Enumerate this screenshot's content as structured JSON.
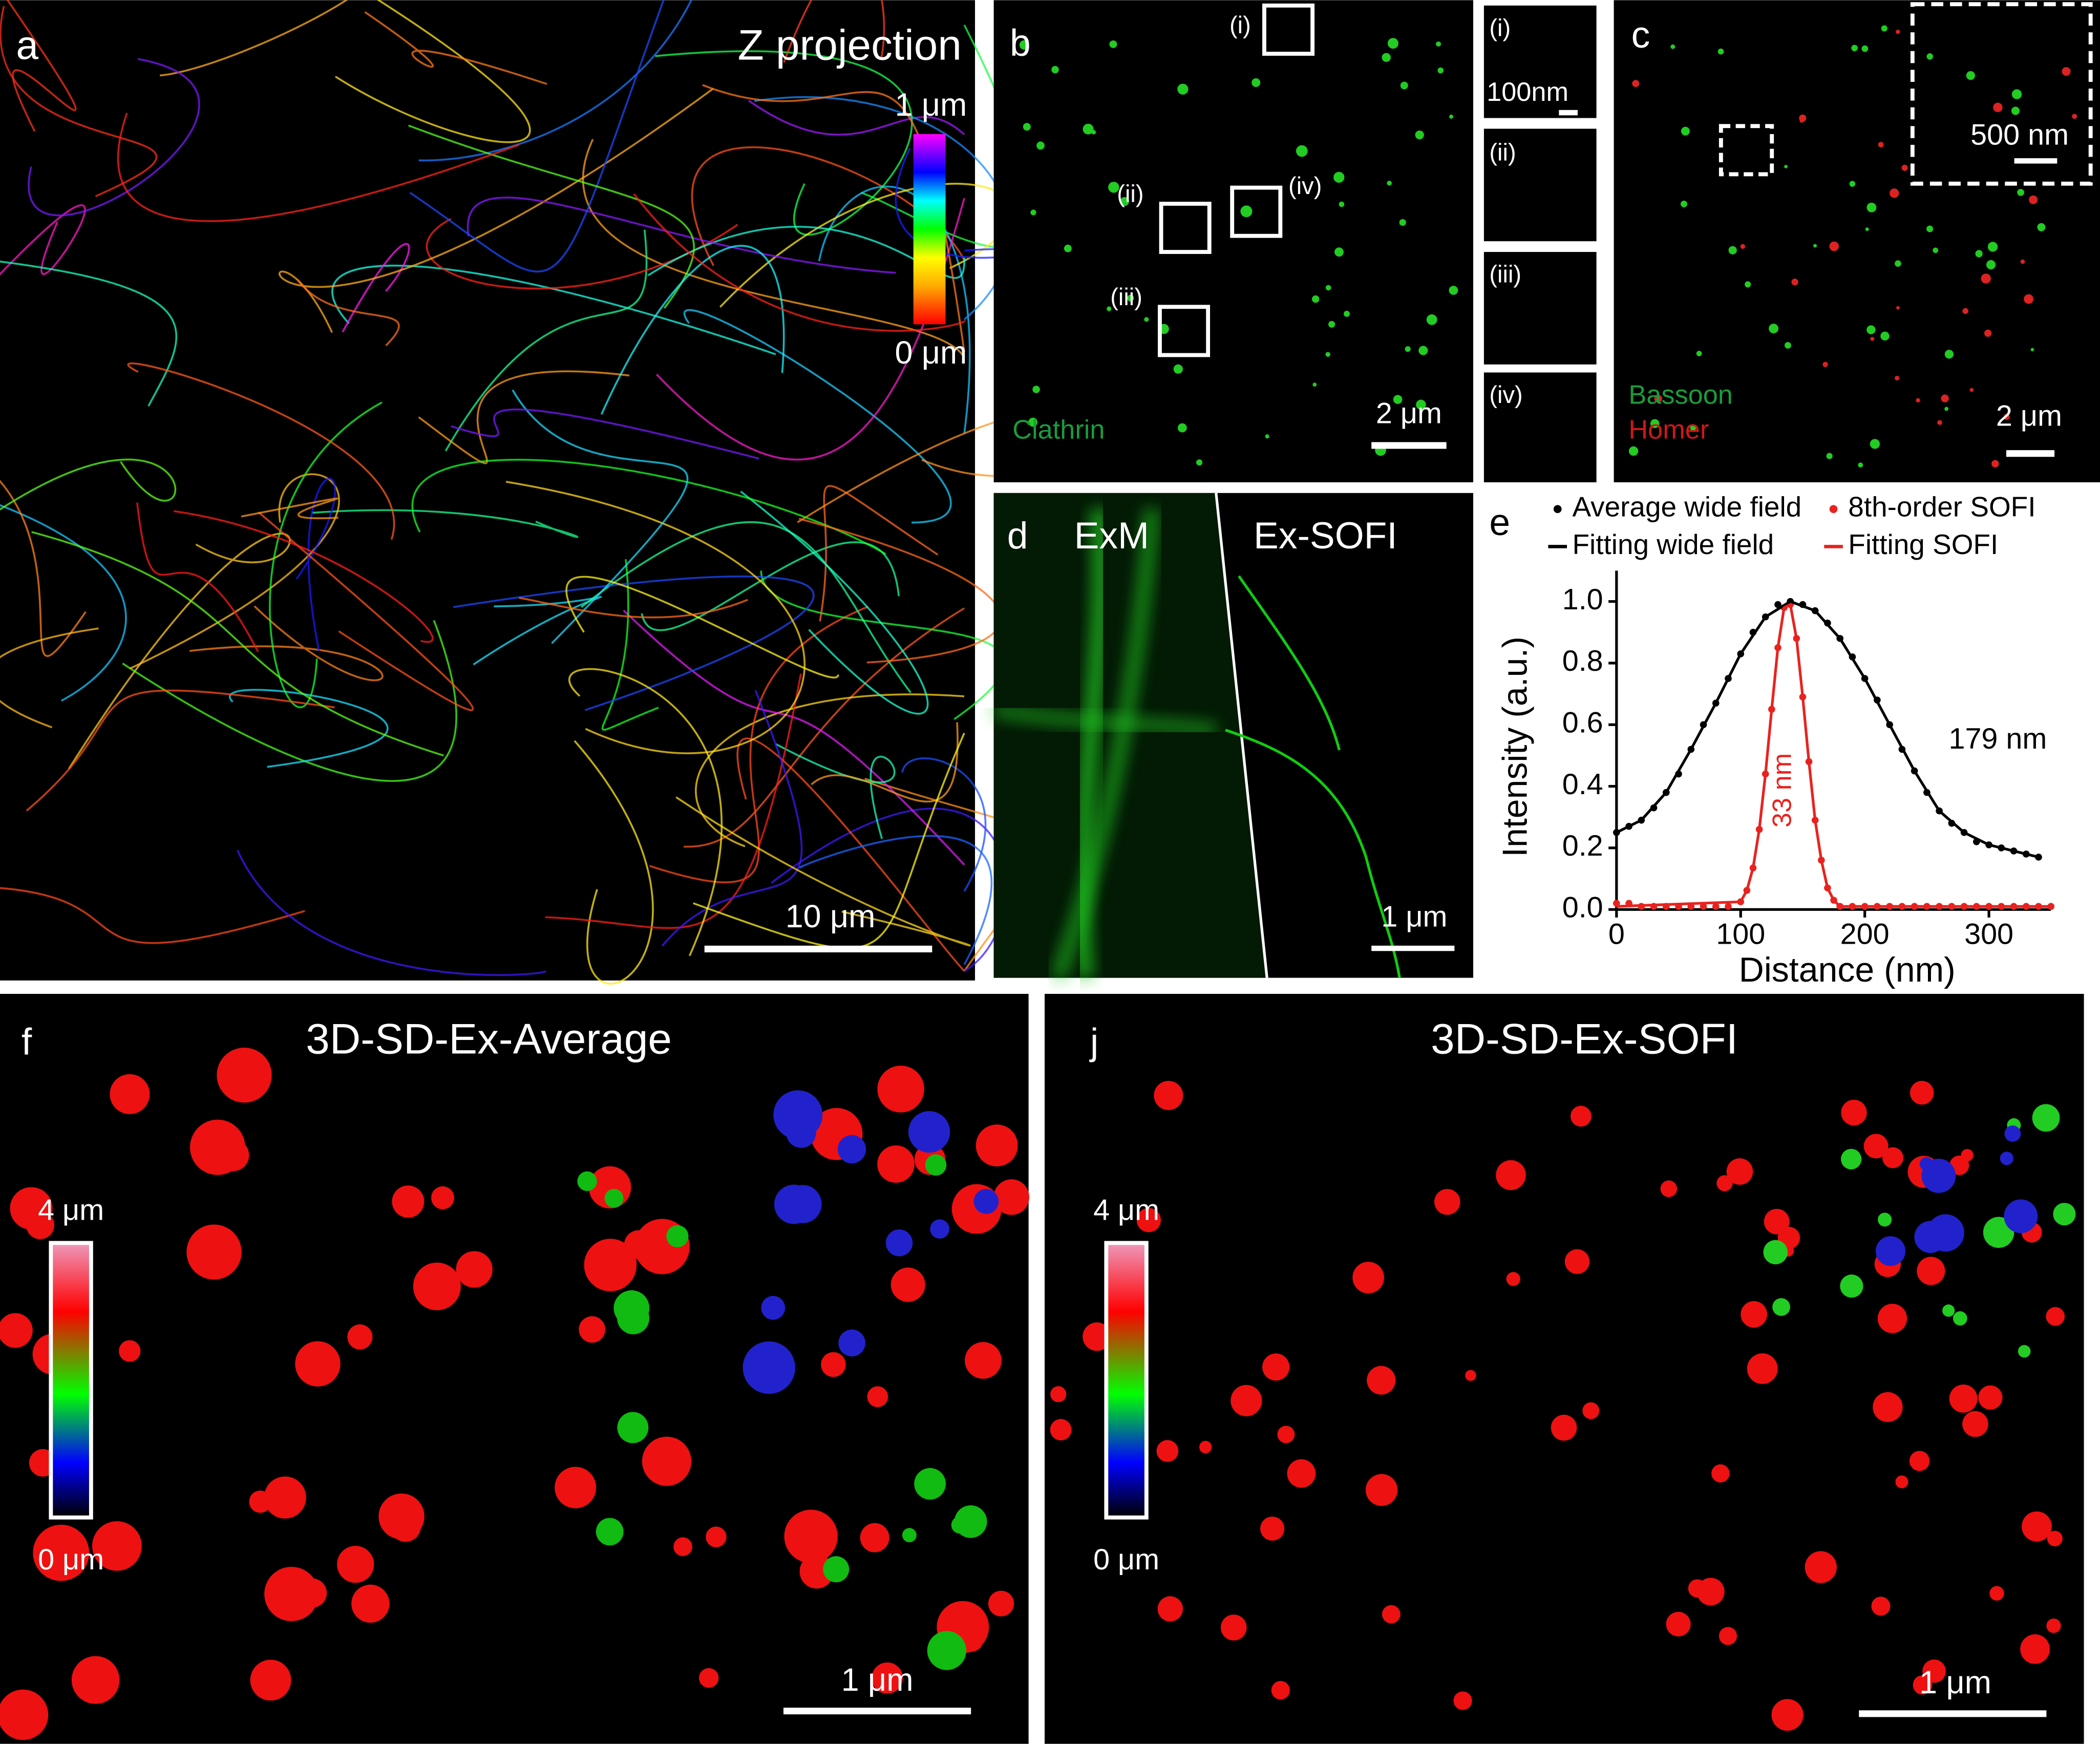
{
  "panels": {
    "a": {
      "label": "a",
      "title": "Z projection",
      "colorbar_max": "1 μm",
      "colorbar_min": "0 μm",
      "scale_bar": "10 μm"
    },
    "b": {
      "label": "b",
      "boxes": [
        "(i)",
        "(ii)",
        "(iii)",
        "(iv)"
      ],
      "stain": "Clathrin",
      "scale_bar": "2 μm",
      "insets": [
        "(i)",
        "(ii)",
        "(iii)",
        "(iv)"
      ],
      "inset_scale_bar": "100nm"
    },
    "c": {
      "label": "c",
      "inset_scale_bar": "500 nm",
      "stains": [
        "Bassoon",
        "Homer"
      ],
      "scale_bar": "2 μm"
    },
    "d": {
      "label": "d",
      "left": "ExM",
      "right": "Ex-SOFI",
      "scale_bar": "1 μm"
    },
    "e": {
      "label": "e"
    },
    "f": {
      "label": "f",
      "title": "3D-SD-Ex-Average",
      "colorbar_max": "4 μm",
      "colorbar_min": "0 μm",
      "scale_bar": "1 μm"
    },
    "j": {
      "label": "j",
      "title": "3D-SD-Ex-SOFI",
      "colorbar_max": "4 μm",
      "colorbar_min": "0 μm",
      "scale_bar": "1 μm"
    }
  },
  "chart_data": {
    "type": "line",
    "xlabel": "Distance (nm)",
    "ylabel": "Intensity (a.u.)",
    "xlim": [
      0,
      350
    ],
    "xticks": [
      0,
      100,
      200,
      300
    ],
    "ylim": [
      0,
      1.1
    ],
    "yticks": [
      {
        "value": 0,
        "label": "0.0"
      },
      {
        "value": 0.2,
        "label": "0.2"
      },
      {
        "value": 0.4,
        "label": "0.4"
      },
      {
        "value": 0.6,
        "label": "0.6"
      },
      {
        "value": 0.8,
        "label": "0.8"
      },
      {
        "value": 1.0,
        "label": "1.0"
      }
    ],
    "annotations": [
      "179 nm",
      "33 nm"
    ],
    "series": [
      {
        "name": "Average wide field",
        "color": "#000000",
        "style": "dots",
        "x": [
          0,
          10,
          20,
          30,
          40,
          50,
          60,
          70,
          80,
          90,
          100,
          110,
          120,
          130,
          140,
          150,
          160,
          170,
          180,
          190,
          200,
          210,
          220,
          230,
          240,
          250,
          260,
          270,
          280,
          290,
          300,
          310,
          320,
          330,
          340
        ],
        "values": [
          0.25,
          0.27,
          0.29,
          0.33,
          0.38,
          0.44,
          0.52,
          0.6,
          0.67,
          0.75,
          0.83,
          0.9,
          0.95,
          0.99,
          1.0,
          0.99,
          0.97,
          0.93,
          0.88,
          0.82,
          0.75,
          0.68,
          0.6,
          0.52,
          0.45,
          0.38,
          0.32,
          0.28,
          0.25,
          0.22,
          0.21,
          0.2,
          0.19,
          0.18,
          0.17
        ]
      },
      {
        "name": "8th-order SOFI",
        "color": "#e8231f",
        "style": "dots",
        "x": [
          0,
          10,
          20,
          30,
          40,
          50,
          60,
          70,
          80,
          90,
          100,
          105,
          110,
          115,
          120,
          125,
          130,
          135,
          140,
          145,
          150,
          155,
          160,
          165,
          170,
          175,
          180,
          190,
          200,
          210,
          220,
          230,
          240,
          250,
          260,
          270,
          280,
          290,
          300,
          310,
          320,
          330,
          340,
          350
        ],
        "values": [
          0.02,
          0.02,
          0.01,
          0.01,
          0.01,
          0.01,
          0.01,
          0.01,
          0.01,
          0.01,
          0.025,
          0.062,
          0.135,
          0.26,
          0.44,
          0.65,
          0.85,
          0.98,
          0.99,
          0.88,
          0.69,
          0.48,
          0.29,
          0.16,
          0.07,
          0.03,
          0.01,
          0.01,
          0.01,
          0.01,
          0.01,
          0.01,
          0.01,
          0.01,
          0.01,
          0.01,
          0.01,
          0.01,
          0.01,
          0.01,
          0.01,
          0.01,
          0.01,
          0.01
        ]
      },
      {
        "name": "Fitting wide field",
        "color": "#000000",
        "style": "line",
        "x": [
          0,
          20,
          40,
          60,
          80,
          100,
          120,
          140,
          160,
          180,
          200,
          220,
          240,
          260,
          280,
          300,
          320,
          340
        ],
        "values": [
          0.25,
          0.29,
          0.38,
          0.52,
          0.67,
          0.83,
          0.95,
          1.0,
          0.97,
          0.88,
          0.75,
          0.6,
          0.45,
          0.32,
          0.25,
          0.21,
          0.19,
          0.17
        ]
      },
      {
        "name": "Fitting SOFI",
        "color": "#e8231f",
        "style": "line",
        "x": [
          0,
          100,
          105,
          110,
          115,
          120,
          125,
          130,
          135,
          140,
          145,
          150,
          155,
          160,
          165,
          170,
          175,
          180,
          350
        ],
        "values": [
          0.01,
          0.025,
          0.062,
          0.135,
          0.26,
          0.44,
          0.65,
          0.85,
          0.98,
          0.99,
          0.88,
          0.69,
          0.48,
          0.29,
          0.16,
          0.07,
          0.03,
          0.01,
          0.01
        ]
      }
    ]
  }
}
